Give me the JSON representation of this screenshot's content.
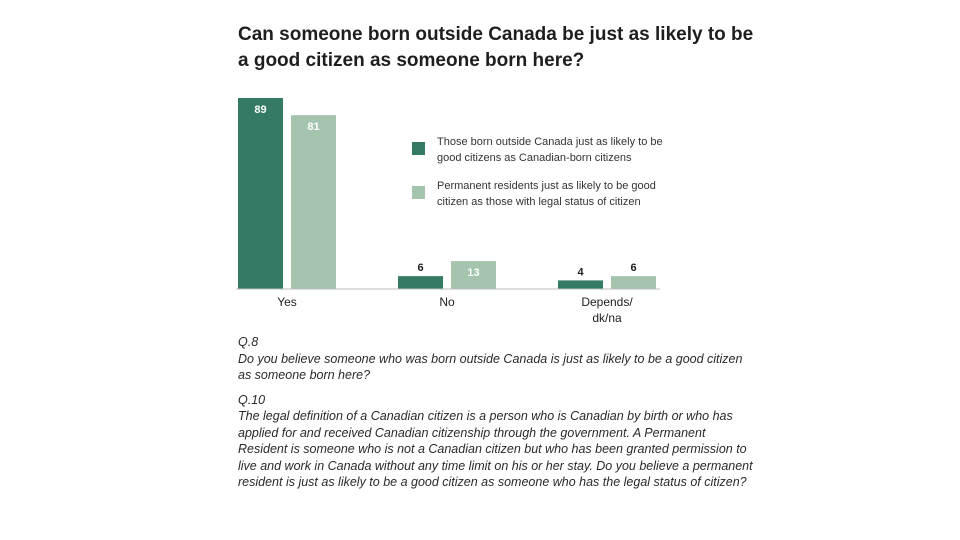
{
  "chart_data": {
    "type": "bar",
    "title": "Can someone born outside Canada be just as likely to be a good citizen as someone born here?",
    "categories": [
      "Yes",
      "No",
      "Depends/\ndk/na"
    ],
    "series": [
      {
        "name": "Those born outside Canada just as likely to be good citizens as Canadian-born citizens",
        "values": [
          89,
          6,
          4
        ],
        "color": "#347a65"
      },
      {
        "name": "Permanent residents just as likely to be good citizen as those with legal status of citizen",
        "values": [
          81,
          13,
          6
        ],
        "color": "#a4c4ad"
      }
    ],
    "ylim": [
      0,
      89
    ],
    "grid": false,
    "legend_position": "right"
  },
  "questions": [
    {
      "label": "Q.8",
      "text": "Do you believe someone who was born outside Canada is just as likely to be a good citizen as someone born here?"
    },
    {
      "label": "Q.10",
      "text": "The legal definition of a Canadian citizen is a person who is Canadian by birth or who has applied for and received Canadian citizenship through the government. A Permanent Resident is someone who is not a Canadian citizen but who has been granted permission to live and work in Canada without any time limit on his or her stay. Do you believe a permanent resident is just as likely to be a good citizen as someone who has the legal status of citizen?"
    }
  ]
}
